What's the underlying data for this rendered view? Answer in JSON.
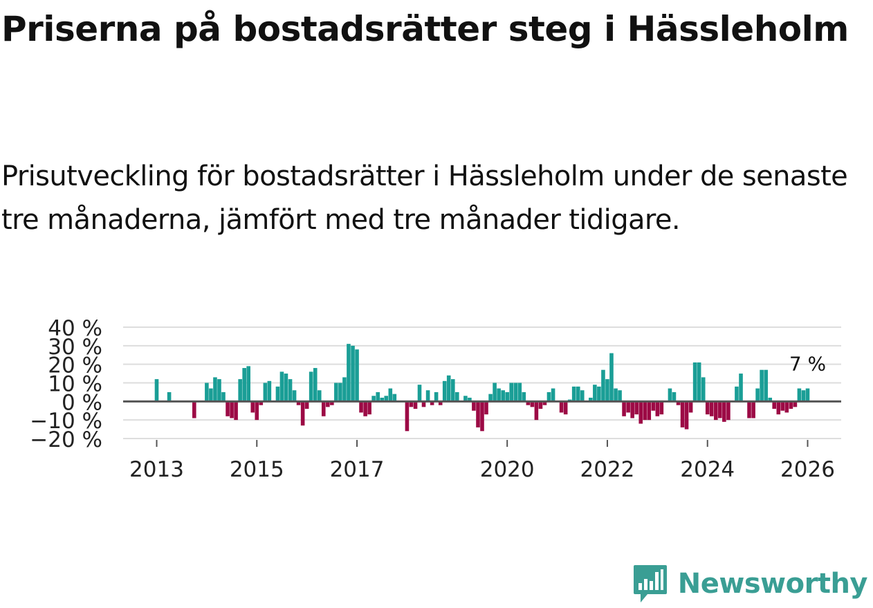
{
  "title": "Priserna på bostadsrätter steg i Hässleholm",
  "subtitle": "Prisutveckling för bostadsrätter i Hässleholm under de senaste tre månaderna, jämfört med tre månader tidigare.",
  "brand": {
    "name": "Newsworthy",
    "logo_icon": "newsworthy-bar-chart-logo-icon",
    "color": "#3a9e94"
  },
  "colors": {
    "positive": "#1a9e96",
    "negative": "#9c0a45",
    "grid": "#dddddd",
    "zero_line": "#555555",
    "text": "#222222"
  },
  "chart_data": {
    "type": "bar",
    "title": "Priserna på bostadsrätter steg i Hässleholm",
    "xlabel": "",
    "ylabel": "",
    "ylim": [
      -20,
      40
    ],
    "y_ticks": [
      -20,
      -10,
      0,
      10,
      20,
      30,
      40
    ],
    "y_tick_labels": [
      "−20 %",
      "−10 %",
      "0 %",
      "10 %",
      "20 %",
      "30 %",
      "40 %"
    ],
    "x_ticks": [
      2013,
      2015,
      2017,
      2020,
      2022,
      2024,
      2026
    ],
    "x_tick_labels": [
      "2013",
      "2015",
      "2017",
      "2020",
      "2022",
      "2024",
      "2026"
    ],
    "x_range": [
      2012.33,
      2026.67
    ],
    "grid": true,
    "annotation": {
      "text": "7 %",
      "x": 2026.0,
      "y": 7
    },
    "points": [
      {
        "x": 2013.0,
        "y": 12
      },
      {
        "x": 2013.25,
        "y": 5
      },
      {
        "x": 2013.75,
        "y": -9
      },
      {
        "x": 2014.0,
        "y": 10
      },
      {
        "x": 2014.083,
        "y": 7
      },
      {
        "x": 2014.167,
        "y": 13
      },
      {
        "x": 2014.25,
        "y": 12
      },
      {
        "x": 2014.333,
        "y": 5
      },
      {
        "x": 2014.417,
        "y": -8
      },
      {
        "x": 2014.5,
        "y": -9
      },
      {
        "x": 2014.583,
        "y": -10
      },
      {
        "x": 2014.667,
        "y": 12
      },
      {
        "x": 2014.75,
        "y": 18
      },
      {
        "x": 2014.833,
        "y": 19
      },
      {
        "x": 2014.917,
        "y": -6
      },
      {
        "x": 2015.0,
        "y": -10
      },
      {
        "x": 2015.083,
        "y": -2
      },
      {
        "x": 2015.167,
        "y": 10
      },
      {
        "x": 2015.25,
        "y": 11
      },
      {
        "x": 2015.417,
        "y": 8
      },
      {
        "x": 2015.5,
        "y": 16
      },
      {
        "x": 2015.583,
        "y": 15
      },
      {
        "x": 2015.667,
        "y": 12
      },
      {
        "x": 2015.75,
        "y": 6
      },
      {
        "x": 2015.833,
        "y": -2
      },
      {
        "x": 2015.917,
        "y": -13
      },
      {
        "x": 2016.0,
        "y": -4
      },
      {
        "x": 2016.083,
        "y": 16
      },
      {
        "x": 2016.167,
        "y": 18
      },
      {
        "x": 2016.25,
        "y": 6
      },
      {
        "x": 2016.333,
        "y": -8
      },
      {
        "x": 2016.417,
        "y": -3
      },
      {
        "x": 2016.5,
        "y": -2
      },
      {
        "x": 2016.583,
        "y": 10
      },
      {
        "x": 2016.667,
        "y": 10
      },
      {
        "x": 2016.75,
        "y": 13
      },
      {
        "x": 2016.833,
        "y": 31
      },
      {
        "x": 2016.917,
        "y": 30
      },
      {
        "x": 2017.0,
        "y": 28
      },
      {
        "x": 2017.083,
        "y": -6
      },
      {
        "x": 2017.167,
        "y": -8
      },
      {
        "x": 2017.25,
        "y": -7
      },
      {
        "x": 2017.333,
        "y": 3
      },
      {
        "x": 2017.417,
        "y": 5
      },
      {
        "x": 2017.5,
        "y": 2
      },
      {
        "x": 2017.583,
        "y": 3
      },
      {
        "x": 2017.667,
        "y": 7
      },
      {
        "x": 2017.75,
        "y": 4
      },
      {
        "x": 2018.0,
        "y": -16
      },
      {
        "x": 2018.083,
        "y": -3
      },
      {
        "x": 2018.167,
        "y": -4
      },
      {
        "x": 2018.25,
        "y": 9
      },
      {
        "x": 2018.333,
        "y": -3
      },
      {
        "x": 2018.417,
        "y": 6
      },
      {
        "x": 2018.5,
        "y": -2
      },
      {
        "x": 2018.583,
        "y": 5
      },
      {
        "x": 2018.667,
        "y": -2
      },
      {
        "x": 2018.75,
        "y": 11
      },
      {
        "x": 2018.833,
        "y": 14
      },
      {
        "x": 2018.917,
        "y": 12
      },
      {
        "x": 2019.0,
        "y": 5
      },
      {
        "x": 2019.167,
        "y": 3
      },
      {
        "x": 2019.25,
        "y": 2
      },
      {
        "x": 2019.333,
        "y": -5
      },
      {
        "x": 2019.417,
        "y": -14
      },
      {
        "x": 2019.5,
        "y": -16
      },
      {
        "x": 2019.583,
        "y": -7
      },
      {
        "x": 2019.667,
        "y": 4
      },
      {
        "x": 2019.75,
        "y": 10
      },
      {
        "x": 2019.833,
        "y": 7
      },
      {
        "x": 2019.917,
        "y": 6
      },
      {
        "x": 2020.0,
        "y": 5
      },
      {
        "x": 2020.083,
        "y": 10
      },
      {
        "x": 2020.167,
        "y": 10
      },
      {
        "x": 2020.25,
        "y": 10
      },
      {
        "x": 2020.333,
        "y": 5
      },
      {
        "x": 2020.417,
        "y": -2
      },
      {
        "x": 2020.5,
        "y": -3
      },
      {
        "x": 2020.583,
        "y": -10
      },
      {
        "x": 2020.667,
        "y": -4
      },
      {
        "x": 2020.75,
        "y": -2
      },
      {
        "x": 2020.833,
        "y": 5
      },
      {
        "x": 2020.917,
        "y": 7
      },
      {
        "x": 2021.083,
        "y": -6
      },
      {
        "x": 2021.167,
        "y": -7
      },
      {
        "x": 2021.25,
        "y": 1
      },
      {
        "x": 2021.333,
        "y": 8
      },
      {
        "x": 2021.417,
        "y": 8
      },
      {
        "x": 2021.5,
        "y": 6
      },
      {
        "x": 2021.667,
        "y": 2
      },
      {
        "x": 2021.75,
        "y": 9
      },
      {
        "x": 2021.833,
        "y": 8
      },
      {
        "x": 2021.917,
        "y": 17
      },
      {
        "x": 2022.0,
        "y": 12
      },
      {
        "x": 2022.083,
        "y": 26
      },
      {
        "x": 2022.167,
        "y": 7
      },
      {
        "x": 2022.25,
        "y": 6
      },
      {
        "x": 2022.333,
        "y": -8
      },
      {
        "x": 2022.417,
        "y": -6
      },
      {
        "x": 2022.5,
        "y": -9
      },
      {
        "x": 2022.583,
        "y": -7
      },
      {
        "x": 2022.667,
        "y": -12
      },
      {
        "x": 2022.75,
        "y": -10
      },
      {
        "x": 2022.833,
        "y": -10
      },
      {
        "x": 2022.917,
        "y": -5
      },
      {
        "x": 2023.0,
        "y": -8
      },
      {
        "x": 2023.083,
        "y": -7
      },
      {
        "x": 2023.25,
        "y": 7
      },
      {
        "x": 2023.333,
        "y": 5
      },
      {
        "x": 2023.417,
        "y": -2
      },
      {
        "x": 2023.5,
        "y": -14
      },
      {
        "x": 2023.583,
        "y": -15
      },
      {
        "x": 2023.667,
        "y": -6
      },
      {
        "x": 2023.75,
        "y": 21
      },
      {
        "x": 2023.833,
        "y": 21
      },
      {
        "x": 2023.917,
        "y": 13
      },
      {
        "x": 2024.0,
        "y": -7
      },
      {
        "x": 2024.083,
        "y": -8
      },
      {
        "x": 2024.167,
        "y": -10
      },
      {
        "x": 2024.25,
        "y": -9
      },
      {
        "x": 2024.333,
        "y": -11
      },
      {
        "x": 2024.417,
        "y": -10
      },
      {
        "x": 2024.583,
        "y": 8
      },
      {
        "x": 2024.667,
        "y": 15
      },
      {
        "x": 2024.833,
        "y": -9
      },
      {
        "x": 2024.917,
        "y": -9
      },
      {
        "x": 2025.0,
        "y": 7
      },
      {
        "x": 2025.083,
        "y": 17
      },
      {
        "x": 2025.167,
        "y": 17
      },
      {
        "x": 2025.25,
        "y": 2
      },
      {
        "x": 2025.333,
        "y": -4
      },
      {
        "x": 2025.417,
        "y": -7
      },
      {
        "x": 2025.5,
        "y": -5
      },
      {
        "x": 2025.583,
        "y": -6
      },
      {
        "x": 2025.667,
        "y": -4
      },
      {
        "x": 2025.75,
        "y": -3
      },
      {
        "x": 2025.833,
        "y": 7
      },
      {
        "x": 2025.917,
        "y": 6
      },
      {
        "x": 2026.0,
        "y": 7
      }
    ]
  }
}
